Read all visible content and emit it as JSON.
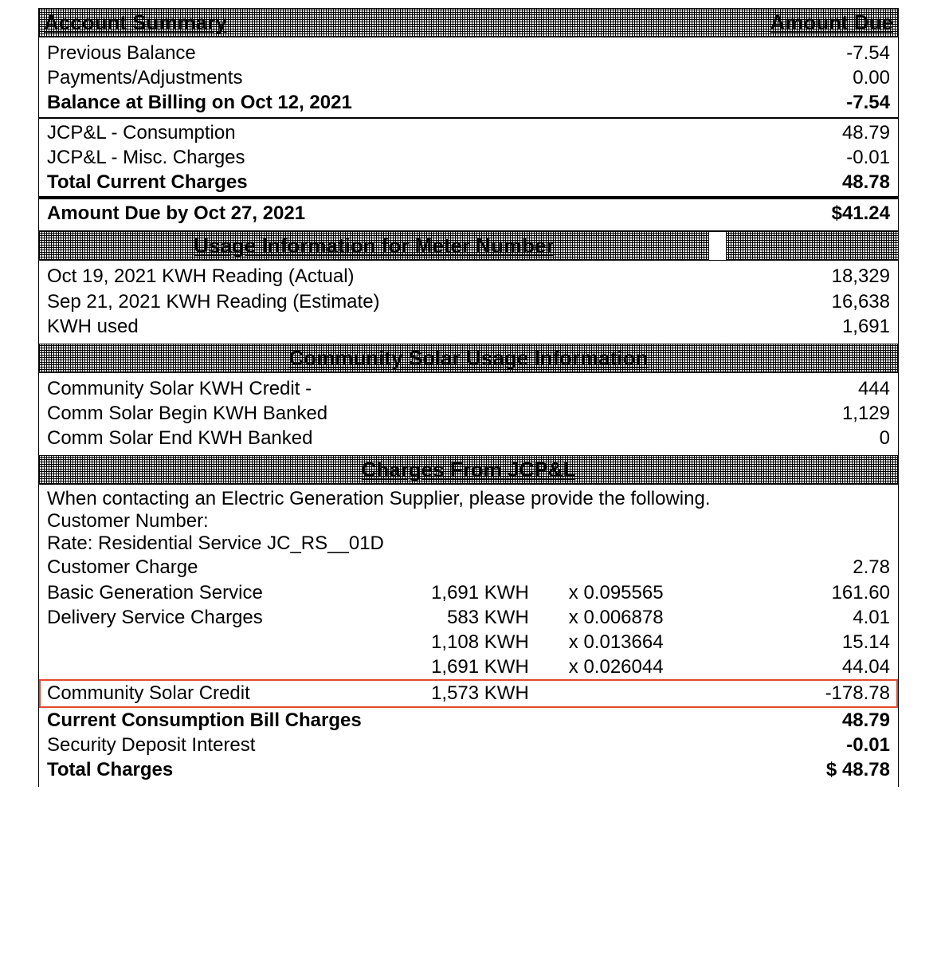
{
  "colors": {
    "highlight_border": "#e2492f"
  },
  "typography": {
    "base_fontsize_pt": 18,
    "header_fontsize_pt": 20,
    "font_family": "Arial"
  },
  "account_summary": {
    "header_left": "Account Summary",
    "header_right": "Amount Due",
    "rows": [
      {
        "label": "Previous Balance",
        "value": "-7.54",
        "bold": false
      },
      {
        "label": "Payments/Adjustments",
        "value": "0.00",
        "bold": false
      },
      {
        "label": "Balance at Billing on Oct 12, 2021",
        "value": "-7.54",
        "bold": true
      }
    ],
    "rows2": [
      {
        "label": "JCP&L  - Consumption",
        "value": "48.79",
        "bold": false
      },
      {
        "label": "JCP&L - Misc. Charges",
        "value": "-0.01",
        "bold": false
      },
      {
        "label": "Total Current Charges",
        "value": "48.78",
        "bold": true
      }
    ],
    "due": {
      "label": "Amount Due by Oct 27, 2021",
      "value": "$41.24"
    }
  },
  "usage_info": {
    "header": "Usage Information for Meter Number",
    "rows": [
      {
        "label": "Oct 19, 2021 KWH Reading (Actual)",
        "value": "18,329"
      },
      {
        "label": "Sep 21, 2021 KWH Reading (Estimate)",
        "value": "16,638"
      },
      {
        "label": "KWH used",
        "value": "1,691"
      }
    ]
  },
  "solar_usage": {
    "header": "Community Solar Usage Information",
    "rows": [
      {
        "label": "Community Solar KWH Credit -",
        "value": "444"
      },
      {
        "label": "Comm Solar Begin KWH Banked",
        "value": "1,129"
      },
      {
        "label": "Comm Solar End KWH Banked",
        "value": "0"
      }
    ]
  },
  "charges": {
    "header": "Charges From JCP&L",
    "intro": [
      "When contacting an Electric Generation Supplier, please provide the following.",
      "Customer Number:",
      "Rate: Residential Service JC_RS__01D"
    ],
    "lines": [
      {
        "label": "Customer Charge",
        "kwh": "",
        "rate": "",
        "amount": "2.78"
      },
      {
        "label": "Basic Generation Service",
        "kwh": "1,691 KWH",
        "rate": "x  0.095565",
        "amount": "161.60"
      },
      {
        "label": "Delivery Service Charges",
        "kwh": "583 KWH",
        "rate": "x  0.006878",
        "amount": "4.01"
      },
      {
        "label": "",
        "kwh": "1,108 KWH",
        "rate": "x  0.013664",
        "amount": "15.14"
      },
      {
        "label": "",
        "kwh": "1,691 KWH",
        "rate": "x  0.026044",
        "amount": "44.04"
      }
    ],
    "highlight_line": {
      "label": "Community Solar Credit",
      "kwh": "1,573 KWH",
      "rate": "",
      "amount": "-178.78"
    },
    "totals": [
      {
        "label": "Current Consumption Bill Charges",
        "value": "48.79",
        "bold": true
      },
      {
        "label": "Security Deposit Interest",
        "value": "-0.01",
        "bold": false,
        "bold_value": true
      },
      {
        "label": "Total Charges",
        "value": "$ 48.78",
        "bold": true
      }
    ]
  }
}
